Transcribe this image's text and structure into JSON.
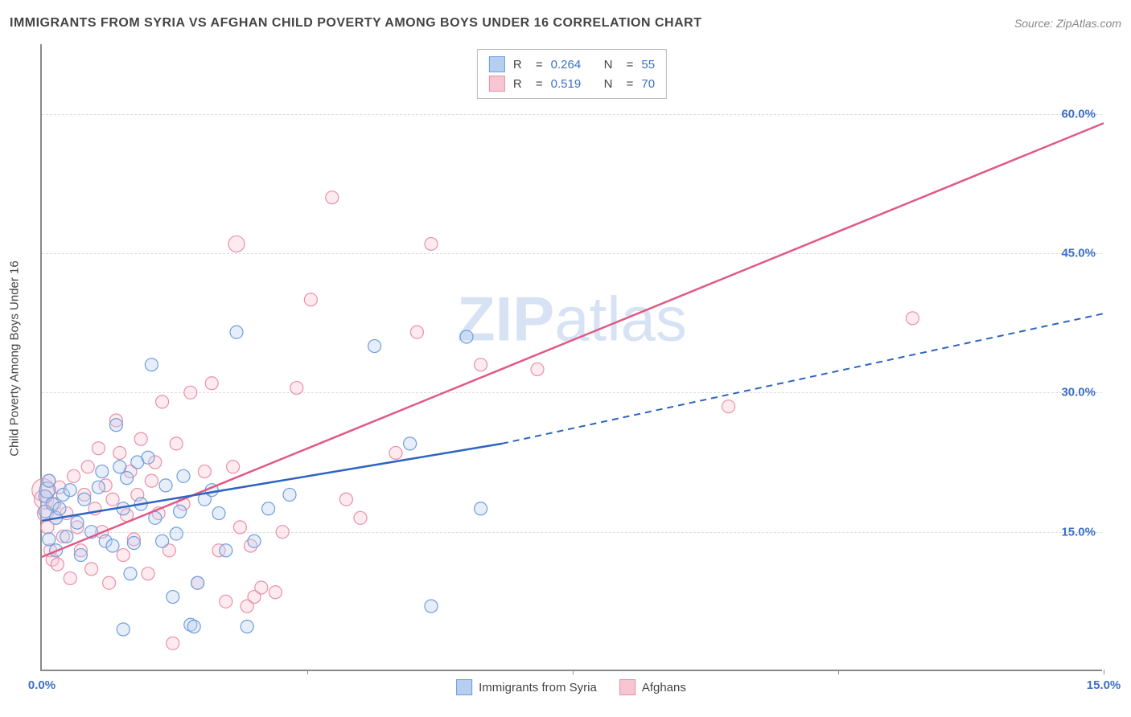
{
  "title": "IMMIGRANTS FROM SYRIA VS AFGHAN CHILD POVERTY AMONG BOYS UNDER 16 CORRELATION CHART",
  "source": "Source: ZipAtlas.com",
  "watermark_bold": "ZIP",
  "watermark_light": "atlas",
  "y_axis_label": "Child Poverty Among Boys Under 16",
  "xlim": [
    0,
    15
  ],
  "ylim": [
    0,
    67.5
  ],
  "xtick_labels": {
    "0": "0.0%",
    "15": "15.0%"
  },
  "xticks_minor": [
    3.75,
    7.5,
    11.25,
    15
  ],
  "ytick_labels": {
    "15": "15.0%",
    "30": "30.0%",
    "45": "45.0%",
    "60": "60.0%"
  },
  "grid_h": [
    15,
    30,
    45,
    60
  ],
  "background_color": "#ffffff",
  "grid_color": "#dddddd",
  "axis_color": "#888888",
  "tick_label_color": "#3b6fc7",
  "series": {
    "blue": {
      "label": "Immigrants from Syria",
      "fill": "#b6cff0",
      "stroke": "#6f9edb",
      "line_color": "#2e64c0",
      "R": "0.264",
      "N": "55",
      "trend": {
        "x1": 0,
        "y1": 16.2,
        "x2": 6.5,
        "y2": 24.5,
        "x2_ext": 15,
        "y2_ext": 38.5,
        "dashed_after": 6.5
      },
      "points": [
        [
          0.05,
          18.8,
          8
        ],
        [
          0.05,
          17.2,
          8
        ],
        [
          0.08,
          19.5,
          10
        ],
        [
          0.1,
          20.5,
          8
        ],
        [
          0.1,
          14.2,
          8
        ],
        [
          0.15,
          18.0,
          8
        ],
        [
          0.2,
          16.5,
          8
        ],
        [
          0.2,
          13.0,
          8
        ],
        [
          0.25,
          17.5,
          8
        ],
        [
          0.3,
          19.0,
          8
        ],
        [
          0.35,
          14.5,
          8
        ],
        [
          0.4,
          19.5,
          8
        ],
        [
          0.5,
          16.0,
          8
        ],
        [
          0.55,
          12.5,
          8
        ],
        [
          0.6,
          18.5,
          8
        ],
        [
          0.7,
          15.0,
          8
        ],
        [
          0.8,
          19.8,
          8
        ],
        [
          0.85,
          21.5,
          8
        ],
        [
          0.9,
          14.0,
          8
        ],
        [
          1.0,
          13.5,
          8
        ],
        [
          1.05,
          26.5,
          8
        ],
        [
          1.1,
          22.0,
          8
        ],
        [
          1.15,
          17.5,
          8
        ],
        [
          1.2,
          20.8,
          8
        ],
        [
          1.25,
          10.5,
          8
        ],
        [
          1.3,
          13.8,
          8
        ],
        [
          1.35,
          22.5,
          8
        ],
        [
          1.4,
          18.0,
          8
        ],
        [
          1.5,
          23.0,
          8
        ],
        [
          1.55,
          33.0,
          8
        ],
        [
          1.6,
          16.5,
          8
        ],
        [
          1.7,
          14.0,
          8
        ],
        [
          1.75,
          20.0,
          8
        ],
        [
          1.85,
          8.0,
          8
        ],
        [
          1.9,
          14.8,
          8
        ],
        [
          1.95,
          17.2,
          8
        ],
        [
          2.0,
          21.0,
          8
        ],
        [
          2.1,
          5.0,
          8
        ],
        [
          2.15,
          4.8,
          8
        ],
        [
          2.2,
          9.5,
          8
        ],
        [
          2.3,
          18.5,
          8
        ],
        [
          2.4,
          19.5,
          8
        ],
        [
          2.5,
          17.0,
          8
        ],
        [
          2.6,
          13.0,
          8
        ],
        [
          2.75,
          36.5,
          8
        ],
        [
          2.9,
          4.8,
          8
        ],
        [
          3.0,
          14.0,
          8
        ],
        [
          3.2,
          17.5,
          8
        ],
        [
          3.5,
          19.0,
          8
        ],
        [
          4.7,
          35.0,
          8
        ],
        [
          5.2,
          24.5,
          8
        ],
        [
          5.5,
          7.0,
          8
        ],
        [
          6.0,
          36.0,
          8
        ],
        [
          6.2,
          17.5,
          8
        ],
        [
          1.15,
          4.5,
          8
        ]
      ]
    },
    "pink": {
      "label": "Afghans",
      "fill": "#f8c6d3",
      "stroke": "#e98fa8",
      "line_color": "#e05a84",
      "R": "0.519",
      "N": "70",
      "trend": {
        "x1": 0,
        "y1": 12.3,
        "x2": 15,
        "y2": 59.0
      },
      "points": [
        [
          0.02,
          19.5,
          14
        ],
        [
          0.03,
          18.5,
          12
        ],
        [
          0.05,
          17.0,
          10
        ],
        [
          0.08,
          15.5,
          8
        ],
        [
          0.1,
          20.5,
          8
        ],
        [
          0.12,
          13.0,
          8
        ],
        [
          0.15,
          12.0,
          8
        ],
        [
          0.18,
          18.0,
          8
        ],
        [
          0.2,
          16.5,
          8
        ],
        [
          0.22,
          11.5,
          8
        ],
        [
          0.25,
          19.8,
          8
        ],
        [
          0.3,
          14.5,
          8
        ],
        [
          0.35,
          17.0,
          8
        ],
        [
          0.4,
          10.0,
          8
        ],
        [
          0.45,
          21.0,
          8
        ],
        [
          0.5,
          15.5,
          8
        ],
        [
          0.55,
          13.0,
          8
        ],
        [
          0.6,
          19.0,
          8
        ],
        [
          0.65,
          22.0,
          8
        ],
        [
          0.7,
          11.0,
          8
        ],
        [
          0.75,
          17.5,
          8
        ],
        [
          0.8,
          24.0,
          8
        ],
        [
          0.85,
          15.0,
          8
        ],
        [
          0.9,
          20.0,
          8
        ],
        [
          0.95,
          9.5,
          8
        ],
        [
          1.0,
          18.5,
          8
        ],
        [
          1.05,
          27.0,
          8
        ],
        [
          1.1,
          23.5,
          8
        ],
        [
          1.15,
          12.5,
          8
        ],
        [
          1.2,
          16.8,
          8
        ],
        [
          1.25,
          21.5,
          8
        ],
        [
          1.3,
          14.2,
          8
        ],
        [
          1.35,
          19.0,
          8
        ],
        [
          1.4,
          25.0,
          8
        ],
        [
          1.5,
          10.5,
          8
        ],
        [
          1.55,
          20.5,
          8
        ],
        [
          1.6,
          22.5,
          8
        ],
        [
          1.65,
          17.0,
          8
        ],
        [
          1.7,
          29.0,
          8
        ],
        [
          1.8,
          13.0,
          8
        ],
        [
          1.85,
          3.0,
          8
        ],
        [
          1.9,
          24.5,
          8
        ],
        [
          2.0,
          18.0,
          8
        ],
        [
          2.1,
          30.0,
          8
        ],
        [
          2.2,
          9.5,
          8
        ],
        [
          2.3,
          21.5,
          8
        ],
        [
          2.4,
          31.0,
          8
        ],
        [
          2.5,
          13.0,
          8
        ],
        [
          2.6,
          7.5,
          8
        ],
        [
          2.7,
          22.0,
          8
        ],
        [
          2.75,
          46.0,
          10
        ],
        [
          2.8,
          15.5,
          8
        ],
        [
          2.9,
          7.0,
          8
        ],
        [
          2.95,
          13.5,
          8
        ],
        [
          3.0,
          8.0,
          8
        ],
        [
          3.1,
          9.0,
          8
        ],
        [
          3.3,
          8.5,
          8
        ],
        [
          3.4,
          15.0,
          8
        ],
        [
          3.6,
          30.5,
          8
        ],
        [
          3.8,
          40.0,
          8
        ],
        [
          4.1,
          51.0,
          8
        ],
        [
          4.3,
          18.5,
          8
        ],
        [
          4.5,
          16.5,
          8
        ],
        [
          5.0,
          23.5,
          8
        ],
        [
          5.3,
          36.5,
          8
        ],
        [
          5.5,
          46.0,
          8
        ],
        [
          6.2,
          33.0,
          8
        ],
        [
          7.0,
          32.5,
          8
        ],
        [
          9.7,
          28.5,
          8
        ],
        [
          12.3,
          38.0,
          8
        ]
      ]
    }
  },
  "legend_text": {
    "R": "R",
    "eq": "=",
    "N": "N"
  }
}
